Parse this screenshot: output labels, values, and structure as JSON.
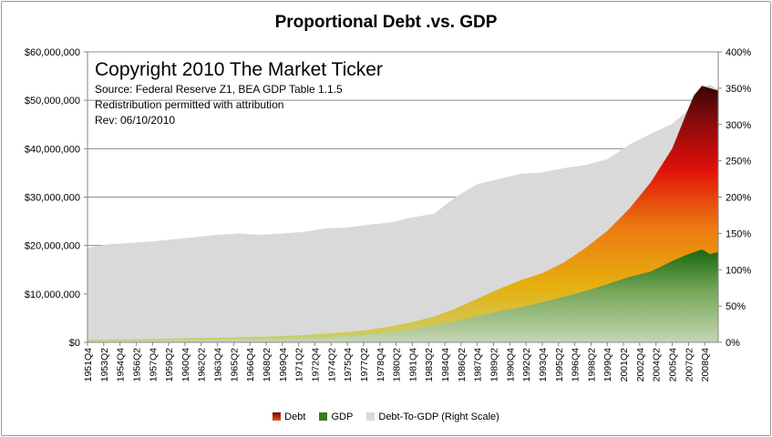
{
  "chart_data": {
    "type": "area",
    "title": "Proportional Debt .vs. GDP",
    "annotation": {
      "copyright": "Copyright 2010 The Market Ticker",
      "source": "Source: Federal Reserve Z1, BEA GDP Table 1.1.5",
      "redistribution": "Redistribution permitted with attribution",
      "revision": "Rev:  06/10/2010"
    },
    "left_axis": {
      "range": [
        0,
        60000000
      ],
      "ticks": [
        0,
        10000000,
        20000000,
        30000000,
        40000000,
        50000000,
        60000000
      ],
      "tick_labels": [
        "$0",
        "$10,000,000",
        "$20,000,000",
        "$30,000,000",
        "$40,000,000",
        "$50,000,000",
        "$60,000,000"
      ]
    },
    "right_axis": {
      "range": [
        0,
        400
      ],
      "ticks": [
        0,
        50,
        100,
        150,
        200,
        250,
        300,
        350,
        400
      ],
      "tick_labels": [
        "0%",
        "50%",
        "100%",
        "150%",
        "200%",
        "250%",
        "300%",
        "350%",
        "400%"
      ]
    },
    "x_tick_labels": [
      "1951Q4",
      "1953Q2",
      "1954Q4",
      "1956Q2",
      "1957Q4",
      "1959Q2",
      "1960Q4",
      "1962Q2",
      "1963Q4",
      "1965Q2",
      "1966Q4",
      "1968Q2",
      "1969Q4",
      "1971Q2",
      "1972Q4",
      "1974Q2",
      "1975Q4",
      "1977Q2",
      "1978Q4",
      "1980Q2",
      "1981Q4",
      "1983Q2",
      "1984Q4",
      "1986Q2",
      "1987Q4",
      "1989Q2",
      "1990Q4",
      "1992Q2",
      "1993Q4",
      "1995Q2",
      "1996Q4",
      "1998Q2",
      "1999Q4",
      "2001Q2",
      "2002Q4",
      "2004Q2",
      "2005Q4",
      "2007Q2",
      "2008Q4"
    ],
    "x": [
      1951.75,
      1953.75,
      1955.75,
      1957.75,
      1959.75,
      1961.75,
      1963.75,
      1965.75,
      1967.75,
      1969.75,
      1971.75,
      1973.75,
      1975.75,
      1977.75,
      1979.75,
      1981.75,
      1983.75,
      1985.75,
      1987.75,
      1989.75,
      1991.75,
      1993.75,
      1995.75,
      1997.75,
      1999.75,
      2001.75,
      2003.75,
      2005.75,
      2007.0,
      2007.75,
      2008.5,
      2009.25,
      2010.0
    ],
    "series": [
      {
        "name": "Debt",
        "axis": "left",
        "color": "#c62a10",
        "values": [
          500000,
          560000,
          640000,
          720000,
          800000,
          880000,
          960000,
          1050000,
          1150000,
          1300000,
          1500000,
          1800000,
          2150000,
          2600000,
          3300000,
          4200000,
          5300000,
          7000000,
          9000000,
          11000000,
          12800000,
          14300000,
          16500000,
          19500000,
          23000000,
          27500000,
          33000000,
          40000000,
          47000000,
          51000000,
          53000000,
          52500000,
          52000000
        ]
      },
      {
        "name": "GDP",
        "axis": "left",
        "color": "#3d7a1c",
        "values": [
          360000,
          380000,
          410000,
          440000,
          480000,
          530000,
          580000,
          640000,
          720000,
          810000,
          900000,
          1050000,
          1300000,
          1600000,
          2100000,
          2700000,
          3500000,
          4300000,
          5300000,
          6400000,
          7200000,
          8300000,
          9400000,
          10600000,
          12000000,
          13500000,
          14600000,
          16800000,
          18000000,
          18600000,
          19200000,
          18200000,
          18700000
        ]
      },
      {
        "name": "Debt-To-GDP (Right Scale)",
        "axis": "right",
        "color": "#d9d9d9",
        "values": [
          130,
          135,
          137,
          139,
          142,
          145,
          148,
          150,
          148,
          150,
          152,
          157,
          158,
          162,
          165,
          172,
          177,
          200,
          218,
          225,
          232,
          234,
          240,
          244,
          252,
          272,
          287,
          301,
          317,
          330,
          350,
          355,
          348
        ]
      }
    ],
    "legend": {
      "position": "bottom",
      "items": [
        "Debt",
        "GDP",
        "Debt-To-GDP (Right Scale)"
      ]
    },
    "grid": true
  }
}
